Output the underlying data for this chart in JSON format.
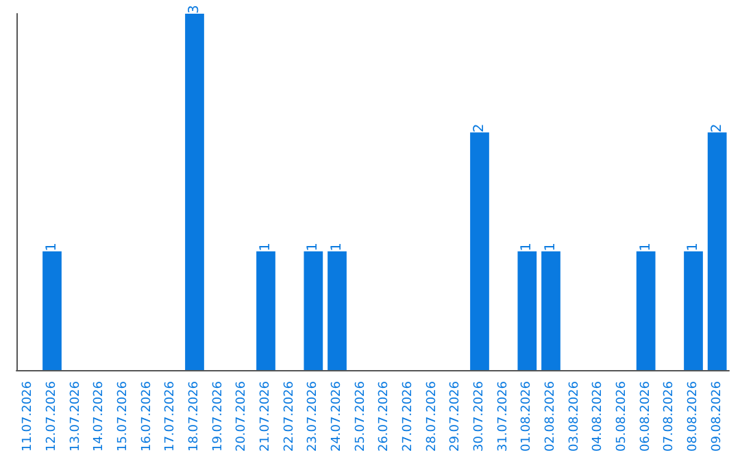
{
  "chart_data": {
    "type": "bar",
    "categories": [
      "11.07.2026",
      "12.07.2026",
      "13.07.2026",
      "14.07.2026",
      "15.07.2026",
      "16.07.2026",
      "17.07.2026",
      "18.07.2026",
      "19.07.2026",
      "20.07.2026",
      "21.07.2026",
      "22.07.2026",
      "23.07.2026",
      "24.07.2026",
      "25.07.2026",
      "26.07.2026",
      "27.07.2026",
      "28.07.2026",
      "29.07.2026",
      "30.07.2026",
      "31.07.2026",
      "01.08.2026",
      "02.08.2026",
      "03.08.2026",
      "04.08.2026",
      "05.08.2026",
      "06.08.2026",
      "07.08.2026",
      "08.08.2026",
      "09.08.2026"
    ],
    "values": [
      0,
      1,
      0,
      0,
      0,
      0,
      0,
      3,
      0,
      0,
      1,
      0,
      1,
      1,
      0,
      0,
      0,
      0,
      0,
      2,
      0,
      1,
      1,
      0,
      0,
      0,
      1,
      0,
      1,
      2
    ],
    "value_labels": [
      null,
      "1",
      null,
      null,
      null,
      null,
      null,
      "3",
      null,
      null,
      "1",
      null,
      "1",
      "1",
      null,
      null,
      null,
      null,
      null,
      "2",
      null,
      "1",
      "1",
      null,
      null,
      null,
      "1",
      null,
      "1",
      "2"
    ],
    "color": "#0a7ae0"
  }
}
